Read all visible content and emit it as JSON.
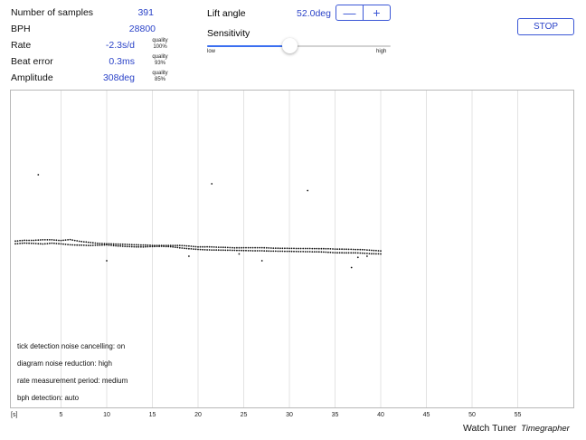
{
  "stats": {
    "samples": {
      "label": "Number of samples",
      "value": "391"
    },
    "bph": {
      "label": "BPH",
      "value": "28800"
    },
    "rate": {
      "label": "Rate",
      "value": "-2.3s/d",
      "quality_label": "quality",
      "quality_value": "100%"
    },
    "beat_error": {
      "label": "Beat error",
      "value": "0.3ms",
      "quality_label": "quality",
      "quality_value": "93%"
    },
    "amplitude": {
      "label": "Amplitude",
      "value": "308deg",
      "quality_label": "quality",
      "quality_value": "85%"
    }
  },
  "lift_angle": {
    "label": "Lift angle",
    "value": "52.0deg",
    "decrement_label": "—",
    "increment_label": "+"
  },
  "sensitivity": {
    "label": "Sensitivity",
    "low_label": "low",
    "high_label": "high",
    "level": 0.45
  },
  "stop_button": {
    "label": "STOP"
  },
  "graph": {
    "x_unit_label": "[s]",
    "x_ticks": [
      "5",
      "10",
      "15",
      "20",
      "25",
      "30",
      "35",
      "40",
      "45",
      "50",
      "55"
    ],
    "info": [
      "tick detection noise cancelling:   on",
      "diagram noise reduction:  high",
      "rate measurement period:  medium",
      "bph detection:  auto"
    ]
  },
  "chart_data": {
    "type": "scatter",
    "xlabel": "[s]",
    "xlim": [
      0,
      60
    ],
    "series": [
      {
        "x": [
          0,
          1,
          2,
          3,
          4,
          5,
          6,
          7,
          8,
          9,
          10,
          11,
          12,
          13,
          14,
          15,
          16,
          17,
          18,
          19,
          20,
          21,
          22,
          23,
          24,
          25,
          26,
          27,
          28,
          29,
          30,
          31,
          32,
          33,
          34,
          35,
          36,
          37,
          38,
          39,
          40
        ],
        "y": [
          0.7,
          1.02,
          1.0,
          1.25,
          1.22,
          0.95,
          1.35,
          0.6,
          0.15,
          -0.3,
          -0.5,
          -0.65,
          -0.75,
          -0.95,
          -1.05,
          -1.22,
          -1.25,
          -1.22,
          -1.25,
          -1.5,
          -1.9,
          -1.85,
          -2.0,
          -2.1,
          -2.3,
          -2.25,
          -2.25,
          -2.25,
          -2.4,
          -2.5,
          -2.55,
          -2.6,
          -2.6,
          -2.65,
          -2.7,
          -2.85,
          -2.9,
          -3.0,
          -3.1,
          -3.4,
          -3.65
        ]
      },
      {
        "x": [
          0,
          1,
          2,
          3,
          4,
          5,
          6,
          7,
          8,
          9,
          10,
          11,
          12,
          13,
          14,
          15,
          16,
          17,
          18,
          19,
          20,
          21,
          22,
          23,
          24,
          25,
          26,
          27,
          28,
          29,
          30,
          31,
          32,
          33,
          34,
          35,
          36,
          37,
          38,
          39,
          40
        ],
        "y": [
          -0.5,
          -0.2,
          -0.35,
          -0.6,
          -0.25,
          -0.55,
          -0.95,
          -1.1,
          -1.25,
          -1.15,
          -1.0,
          -1.4,
          -1.65,
          -1.85,
          -1.9,
          -1.7,
          -1.6,
          -1.8,
          -2.3,
          -2.7,
          -3.0,
          -3.2,
          -3.25,
          -3.35,
          -3.4,
          -3.5,
          -3.6,
          -3.6,
          -3.75,
          -3.8,
          -3.85,
          -3.95,
          -4.0,
          -4.05,
          -4.2,
          -4.45,
          -4.5,
          -4.5,
          -4.65,
          -4.9,
          -5.0
        ]
      },
      {
        "x": [
          2.5,
          10,
          19,
          21.5,
          24.5,
          27,
          32,
          36.8,
          37.5,
          38.5
        ],
        "y": [
          30,
          -8,
          -6,
          26,
          -5,
          -8,
          23,
          -11,
          -6.5,
          -6
        ]
      }
    ]
  }
}
